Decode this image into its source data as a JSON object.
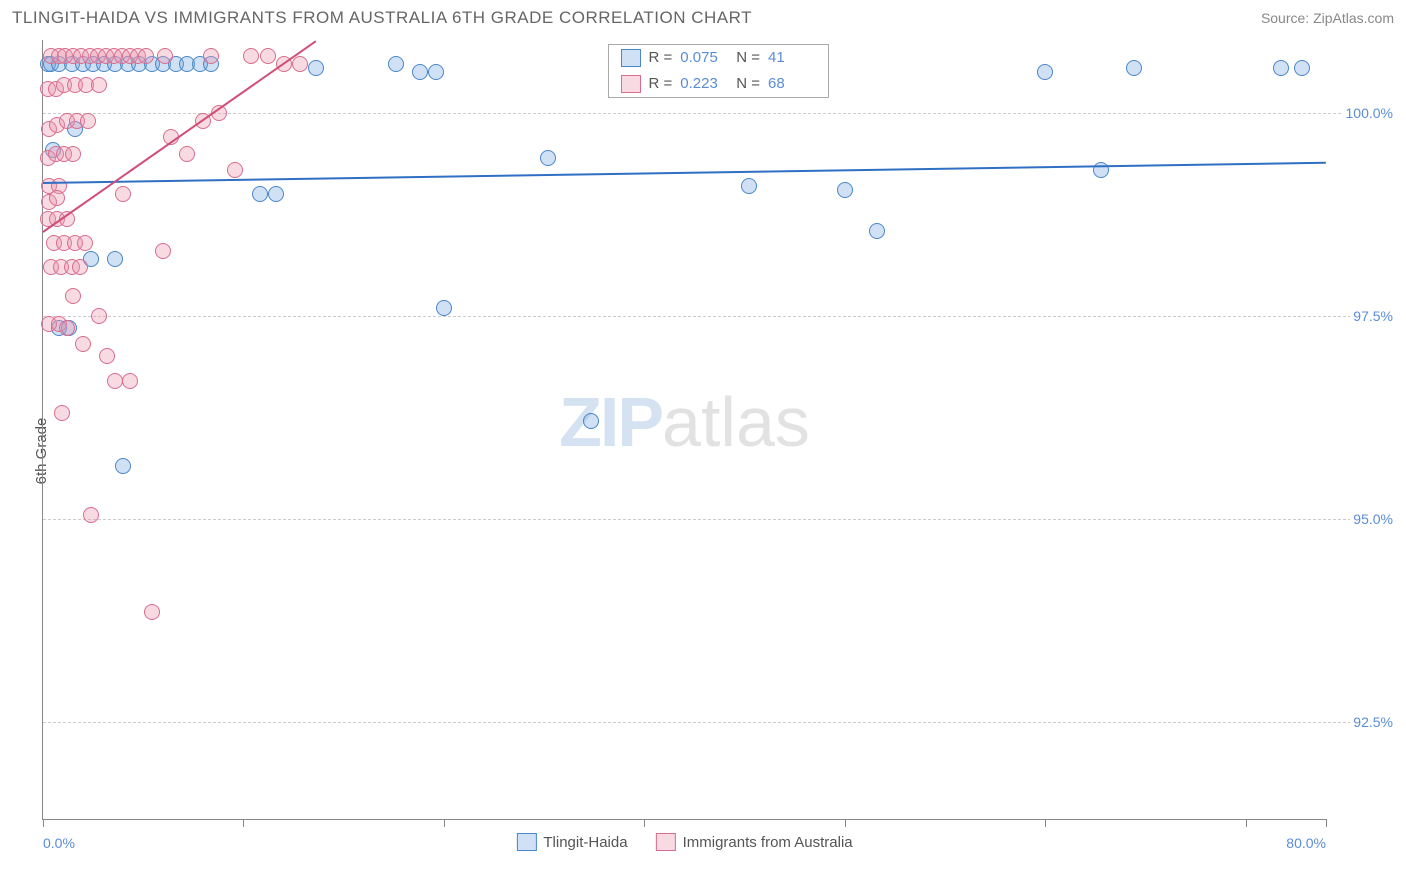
{
  "title": "TLINGIT-HAIDA VS IMMIGRANTS FROM AUSTRALIA 6TH GRADE CORRELATION CHART",
  "source": "Source: ZipAtlas.com",
  "y_axis_label": "6th Grade",
  "watermark": {
    "part1": "ZIP",
    "part2": "atlas"
  },
  "chart": {
    "type": "scatter",
    "xlim": [
      0,
      80
    ],
    "ylim": [
      91.3,
      100.9
    ],
    "background_color": "#ffffff",
    "grid_color": "#cccccc",
    "axis_color": "#888888",
    "tick_label_color": "#5b8dd6",
    "x_ticks": [
      {
        "pos": 0,
        "label": "0.0%",
        "align": "left"
      },
      {
        "pos": 12.5,
        "label": ""
      },
      {
        "pos": 25,
        "label": ""
      },
      {
        "pos": 37.5,
        "label": ""
      },
      {
        "pos": 50,
        "label": ""
      },
      {
        "pos": 62.5,
        "label": ""
      },
      {
        "pos": 75,
        "label": ""
      },
      {
        "pos": 80,
        "label": "80.0%",
        "align": "right"
      }
    ],
    "y_ticks": [
      {
        "pos": 92.5,
        "label": "92.5%"
      },
      {
        "pos": 95.0,
        "label": "95.0%"
      },
      {
        "pos": 97.5,
        "label": "97.5%"
      },
      {
        "pos": 100.0,
        "label": "100.0%"
      }
    ],
    "marker_radius": 8,
    "marker_border_width": 1.5,
    "series": [
      {
        "name": "Tlingit-Haida",
        "fill": "rgba(120,170,225,0.35)",
        "stroke": "#4a86c8",
        "R": "0.075",
        "N": "41",
        "trend": {
          "x1": 0,
          "y1": 99.15,
          "x2": 80,
          "y2": 99.4,
          "color": "#2f6fc4",
          "width": 2
        },
        "points": [
          [
            0.3,
            100.6
          ],
          [
            0.5,
            100.6
          ],
          [
            1.0,
            100.6
          ],
          [
            1.8,
            100.6
          ],
          [
            2.5,
            100.6
          ],
          [
            3.1,
            100.6
          ],
          [
            3.8,
            100.6
          ],
          [
            4.5,
            100.6
          ],
          [
            5.3,
            100.6
          ],
          [
            6.0,
            100.6
          ],
          [
            6.8,
            100.6
          ],
          [
            7.5,
            100.6
          ],
          [
            8.3,
            100.6
          ],
          [
            9.0,
            100.6
          ],
          [
            9.8,
            100.6
          ],
          [
            10.5,
            100.6
          ],
          [
            17.0,
            100.55
          ],
          [
            22.0,
            100.6
          ],
          [
            23.5,
            100.5
          ],
          [
            24.5,
            100.5
          ],
          [
            37.0,
            100.55
          ],
          [
            62.5,
            100.5
          ],
          [
            68.0,
            100.55
          ],
          [
            77.2,
            100.55
          ],
          [
            78.5,
            100.55
          ],
          [
            66.0,
            99.3
          ],
          [
            44.0,
            99.1
          ],
          [
            50.0,
            99.05
          ],
          [
            52.0,
            98.55
          ],
          [
            13.5,
            99.0
          ],
          [
            14.5,
            99.0
          ],
          [
            31.5,
            99.45
          ],
          [
            3.0,
            98.2
          ],
          [
            4.5,
            98.2
          ],
          [
            1.0,
            97.35
          ],
          [
            1.6,
            97.35
          ],
          [
            25.0,
            97.6
          ],
          [
            34.2,
            96.2
          ],
          [
            5.0,
            95.65
          ],
          [
            0.6,
            99.55
          ],
          [
            2.0,
            99.8
          ]
        ]
      },
      {
        "name": "Immigrants from Australia",
        "fill": "rgba(235,150,175,0.35)",
        "stroke": "#d86d8f",
        "R": "0.223",
        "N": "68",
        "trend": {
          "x1": 0,
          "y1": 98.55,
          "x2": 17,
          "y2": 100.9,
          "color": "#d14d78",
          "width": 2
        },
        "points": [
          [
            0.5,
            100.7
          ],
          [
            1.0,
            100.7
          ],
          [
            1.4,
            100.7
          ],
          [
            1.9,
            100.7
          ],
          [
            2.4,
            100.7
          ],
          [
            2.9,
            100.7
          ],
          [
            3.4,
            100.7
          ],
          [
            3.9,
            100.7
          ],
          [
            4.4,
            100.7
          ],
          [
            4.9,
            100.7
          ],
          [
            5.4,
            100.7
          ],
          [
            5.9,
            100.7
          ],
          [
            6.4,
            100.7
          ],
          [
            7.6,
            100.7
          ],
          [
            10.5,
            100.7
          ],
          [
            13.0,
            100.7
          ],
          [
            14.0,
            100.7
          ],
          [
            0.3,
            100.3
          ],
          [
            0.8,
            100.3
          ],
          [
            1.3,
            100.35
          ],
          [
            2.0,
            100.35
          ],
          [
            2.7,
            100.35
          ],
          [
            3.5,
            100.35
          ],
          [
            0.4,
            99.8
          ],
          [
            0.9,
            99.85
          ],
          [
            1.5,
            99.9
          ],
          [
            2.1,
            99.9
          ],
          [
            2.8,
            99.9
          ],
          [
            10.0,
            99.9
          ],
          [
            12.0,
            99.3
          ],
          [
            11.0,
            100.0
          ],
          [
            0.3,
            99.45
          ],
          [
            0.8,
            99.5
          ],
          [
            1.3,
            99.5
          ],
          [
            1.9,
            99.5
          ],
          [
            0.4,
            99.1
          ],
          [
            1.0,
            99.1
          ],
          [
            0.3,
            98.7
          ],
          [
            0.9,
            98.7
          ],
          [
            1.5,
            98.7
          ],
          [
            0.7,
            98.4
          ],
          [
            1.3,
            98.4
          ],
          [
            2.0,
            98.4
          ],
          [
            2.6,
            98.4
          ],
          [
            7.5,
            98.3
          ],
          [
            0.5,
            98.1
          ],
          [
            1.1,
            98.1
          ],
          [
            1.8,
            98.1
          ],
          [
            2.3,
            98.1
          ],
          [
            1.9,
            97.75
          ],
          [
            0.4,
            97.4
          ],
          [
            1.0,
            97.4
          ],
          [
            1.5,
            97.35
          ],
          [
            3.5,
            97.5
          ],
          [
            2.5,
            97.15
          ],
          [
            4.0,
            97.0
          ],
          [
            4.5,
            96.7
          ],
          [
            5.4,
            96.7
          ],
          [
            1.2,
            96.3
          ],
          [
            3.0,
            95.05
          ],
          [
            6.8,
            93.85
          ],
          [
            0.4,
            98.9
          ],
          [
            0.9,
            98.95
          ],
          [
            15.0,
            100.6
          ],
          [
            16.0,
            100.6
          ],
          [
            8.0,
            99.7
          ],
          [
            9.0,
            99.5
          ],
          [
            5.0,
            99.0
          ]
        ]
      }
    ],
    "legend_stats": {
      "left_pct": 44,
      "top_pct": 0.5
    },
    "bottom_legend": true
  }
}
